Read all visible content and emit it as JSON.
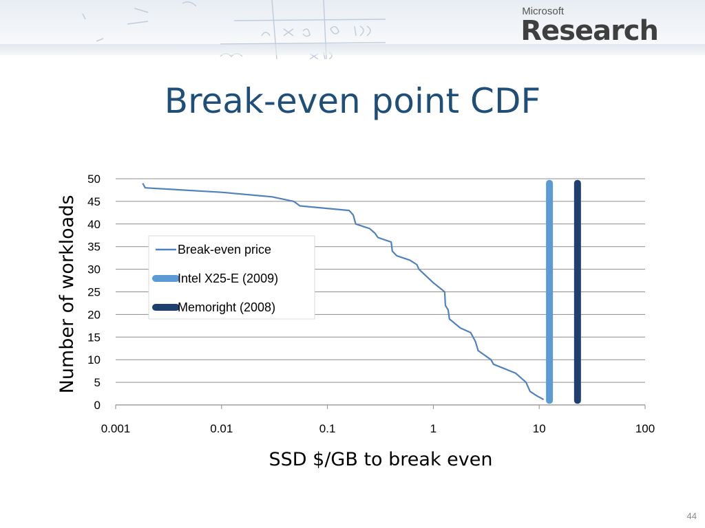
{
  "slide": {
    "title": "Break-even point CDF",
    "page_number": "44",
    "logo": {
      "top": "Microsoft",
      "bottom": "Research"
    }
  },
  "chart_data": {
    "type": "line",
    "title": "",
    "xlabel": "SSD $/GB to break even",
    "ylabel": "Number of workloads",
    "x_scale": "log",
    "xlim": [
      0.001,
      100
    ],
    "ylim": [
      0,
      50
    ],
    "x_ticks": [
      "0.001",
      "0.01",
      "0.1",
      "1",
      "10",
      "100"
    ],
    "y_ticks": [
      "0",
      "5",
      "10",
      "15",
      "20",
      "25",
      "30",
      "35",
      "40",
      "45",
      "50"
    ],
    "grid": "horizontal",
    "legend_position": "upper-left inside plot",
    "series": [
      {
        "name": "Break-even price",
        "color": "#4f81bd",
        "style": "thin-line",
        "points": [
          [
            0.0018,
            49
          ],
          [
            0.0019,
            48
          ],
          [
            0.01,
            47
          ],
          [
            0.03,
            46
          ],
          [
            0.048,
            45
          ],
          [
            0.055,
            44
          ],
          [
            0.16,
            43
          ],
          [
            0.175,
            42
          ],
          [
            0.185,
            40
          ],
          [
            0.25,
            39
          ],
          [
            0.28,
            38
          ],
          [
            0.3,
            37
          ],
          [
            0.4,
            36
          ],
          [
            0.41,
            34
          ],
          [
            0.45,
            33
          ],
          [
            0.6,
            32
          ],
          [
            0.7,
            31
          ],
          [
            0.73,
            30
          ],
          [
            1.0,
            27
          ],
          [
            1.28,
            25
          ],
          [
            1.3,
            22
          ],
          [
            1.38,
            21
          ],
          [
            1.42,
            19
          ],
          [
            1.8,
            17
          ],
          [
            2.25,
            16
          ],
          [
            2.5,
            14
          ],
          [
            2.65,
            12
          ],
          [
            3.5,
            10
          ],
          [
            3.7,
            9
          ],
          [
            6.0,
            7
          ],
          [
            7.5,
            5
          ],
          [
            8.2,
            3
          ],
          [
            9.5,
            2
          ],
          [
            11.0,
            1.2
          ]
        ]
      },
      {
        "name": "Intel X25-E (2009)",
        "color": "#5b9bd5",
        "style": "thick-vertical",
        "x": 12.5,
        "y_range": [
          1,
          49
        ]
      },
      {
        "name": "Memoright (2008)",
        "color": "#1f3f6e",
        "style": "thick-vertical",
        "x": 23,
        "y_range": [
          1,
          49
        ]
      }
    ]
  }
}
